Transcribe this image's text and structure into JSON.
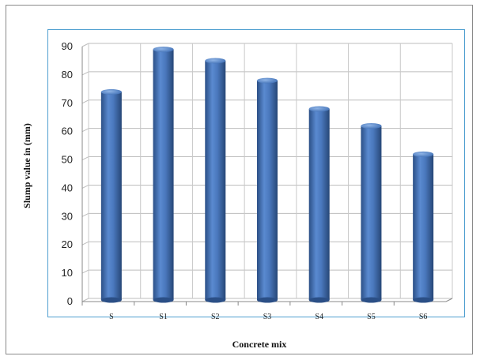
{
  "chart_data": {
    "type": "bar",
    "categories": [
      "S",
      "S1",
      "S2",
      "S3",
      "S4",
      "S5",
      "S6"
    ],
    "values": [
      74,
      89,
      85,
      78,
      68,
      62,
      52
    ],
    "xlabel": "Concrete mix",
    "ylabel": "Slump value in (mm)",
    "ylim": [
      0,
      90
    ],
    "yticks": [
      0,
      10,
      20,
      30,
      40,
      50,
      60,
      70,
      80,
      90
    ],
    "grid": true,
    "legend": "none",
    "bar_color": "#3f6fb5"
  }
}
